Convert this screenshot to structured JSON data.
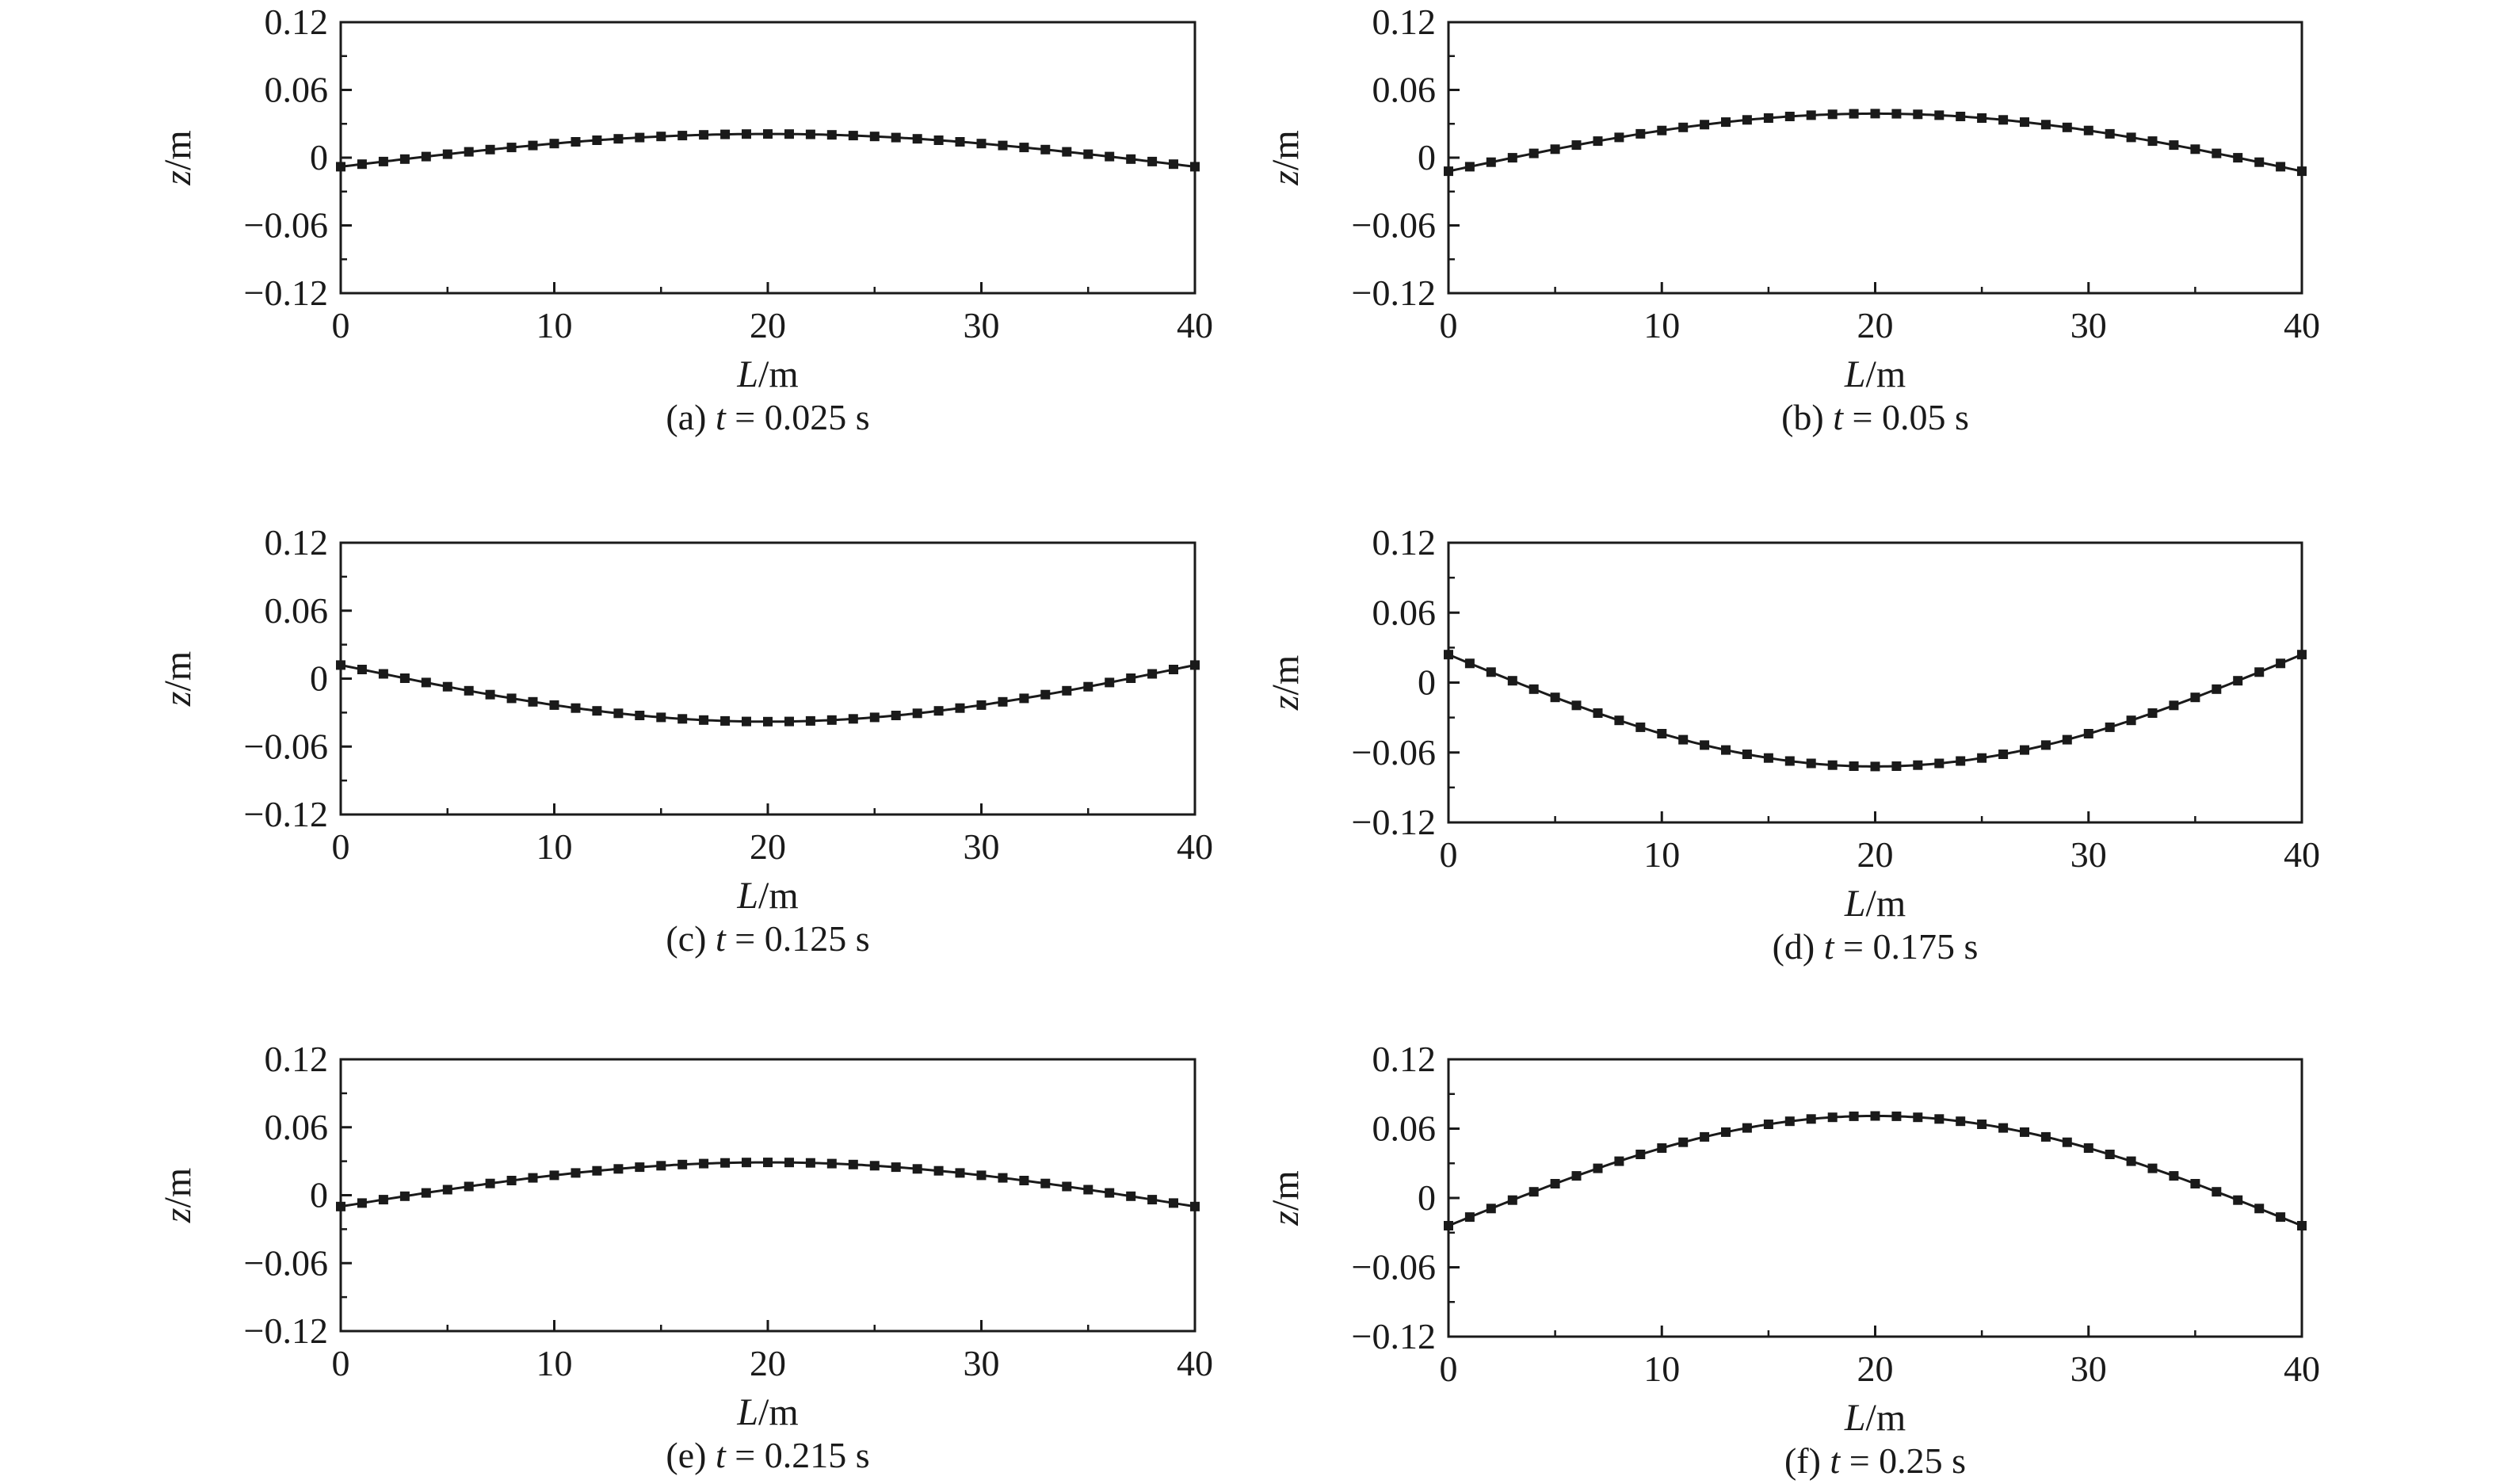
{
  "chart_data": [
    {
      "type": "line",
      "caption": {
        "prefix": "(a) ",
        "var": "t",
        "rest": " = 0.025 s"
      },
      "xlabel": {
        "var": "L",
        "unit": "/m"
      },
      "ylabel": {
        "var": "z",
        "unit": "/m"
      },
      "xlim": [
        0,
        40
      ],
      "ylim": [
        -0.12,
        0.12
      ],
      "xticks": [
        0,
        10,
        20,
        30,
        40
      ],
      "yticks": [
        -0.12,
        -0.06,
        0,
        0.06,
        0.12
      ],
      "ytick_labels": [
        "−0.12",
        "−0.06",
        "0",
        "0.06",
        "0.12"
      ],
      "series": [
        {
          "shape": "cosine",
          "center": 20,
          "period": 80,
          "amplitude": 0.029,
          "offset": -0.008,
          "marker": "square",
          "markers_every": 1
        }
      ]
    },
    {
      "type": "line",
      "caption": {
        "prefix": "(b) ",
        "var": "t",
        "rest": " = 0.05 s"
      },
      "xlabel": {
        "var": "L",
        "unit": "/m"
      },
      "ylabel": {
        "var": "z",
        "unit": "/m"
      },
      "xlim": [
        0,
        40
      ],
      "ylim": [
        -0.12,
        0.12
      ],
      "xticks": [
        0,
        10,
        20,
        30,
        40
      ],
      "yticks": [
        -0.12,
        -0.06,
        0,
        0.06,
        0.12
      ],
      "ytick_labels": [
        "−0.12",
        "−0.06",
        "0",
        "0.06",
        "0.12"
      ],
      "series": [
        {
          "shape": "cosine",
          "center": 20,
          "period": 80,
          "amplitude": 0.051,
          "offset": -0.012,
          "marker": "square",
          "markers_every": 1
        }
      ]
    },
    {
      "type": "line",
      "caption": {
        "prefix": "(c) ",
        "var": "t",
        "rest": " = 0.125 s"
      },
      "xlabel": {
        "var": "L",
        "unit": "/m"
      },
      "ylabel": {
        "var": "z",
        "unit": "/m"
      },
      "xlim": [
        0,
        40
      ],
      "ylim": [
        -0.12,
        0.12
      ],
      "xticks": [
        0,
        10,
        20,
        30,
        40
      ],
      "yticks": [
        -0.12,
        -0.06,
        0,
        0.06,
        0.12
      ],
      "ytick_labels": [
        "−0.12",
        "−0.06",
        "0",
        "0.06",
        "0.12"
      ],
      "series": [
        {
          "shape": "cosine",
          "center": 20,
          "period": 80,
          "amplitude": -0.05,
          "offset": 0.012,
          "marker": "square",
          "markers_every": 1
        }
      ]
    },
    {
      "type": "line",
      "caption": {
        "prefix": "(d) ",
        "var": "t",
        "rest": " = 0.175 s"
      },
      "xlabel": {
        "var": "L",
        "unit": "/m"
      },
      "ylabel": {
        "var": "z",
        "unit": "/m"
      },
      "xlim": [
        0,
        40
      ],
      "ylim": [
        -0.12,
        0.12
      ],
      "xticks": [
        0,
        10,
        20,
        30,
        40
      ],
      "yticks": [
        -0.12,
        -0.06,
        0,
        0.06,
        0.12
      ],
      "ytick_labels": [
        "−0.12",
        "−0.06",
        "0",
        "0.06",
        "0.12"
      ],
      "series": [
        {
          "shape": "cosine",
          "center": 20,
          "period": 80,
          "amplitude": -0.096,
          "offset": 0.024,
          "marker": "square",
          "markers_every": 1
        }
      ]
    },
    {
      "type": "line",
      "caption": {
        "prefix": "(e) ",
        "var": "t",
        "rest": " = 0.215 s"
      },
      "xlabel": {
        "var": "L",
        "unit": "/m"
      },
      "ylabel": {
        "var": "z",
        "unit": "/m"
      },
      "xlim": [
        0,
        40
      ],
      "ylim": [
        -0.12,
        0.12
      ],
      "xticks": [
        0,
        10,
        20,
        30,
        40
      ],
      "yticks": [
        -0.12,
        -0.06,
        0,
        0.06,
        0.12
      ],
      "ytick_labels": [
        "−0.12",
        "−0.06",
        "0",
        "0.06",
        "0.12"
      ],
      "series": [
        {
          "shape": "cosine",
          "center": 20,
          "period": 80,
          "amplitude": 0.039,
          "offset": -0.01,
          "marker": "square",
          "markers_every": 1
        }
      ]
    },
    {
      "type": "line",
      "caption": {
        "prefix": "(f) ",
        "var": "t",
        "rest": " = 0.25 s"
      },
      "xlabel": {
        "var": "L",
        "unit": "/m"
      },
      "ylabel": {
        "var": "z",
        "unit": "/m"
      },
      "xlim": [
        0,
        40
      ],
      "ylim": [
        -0.12,
        0.12
      ],
      "xticks": [
        0,
        10,
        20,
        30,
        40
      ],
      "yticks": [
        -0.12,
        -0.06,
        0,
        0.06,
        0.12
      ],
      "ytick_labels": [
        "−0.12",
        "−0.06",
        "0",
        "0.06",
        "0.12"
      ],
      "series": [
        {
          "shape": "cosine",
          "center": 20,
          "period": 80,
          "amplitude": 0.095,
          "offset": -0.024,
          "marker": "square",
          "markers_every": 1
        }
      ]
    }
  ]
}
